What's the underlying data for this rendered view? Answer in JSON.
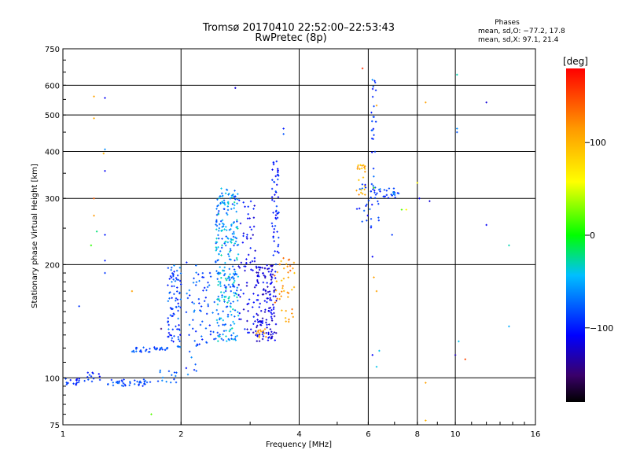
{
  "chart_data": {
    "type": "scatter",
    "title": "Tromsø 20170410 22:52:00–22:53:43",
    "subtitle": "RwPretec (8p)",
    "xlabel": "Frequency [MHz]",
    "ylabel": "Stationary phase Virtual Height [km]",
    "x_scale": "log",
    "y_scale": "log",
    "xlim": [
      1,
      16
    ],
    "ylim": [
      75,
      750
    ],
    "x_ticks": [
      "1",
      "2",
      "4",
      "6",
      "8",
      "10",
      "16"
    ],
    "x_tick_values": [
      1,
      2,
      4,
      6,
      8,
      10,
      16
    ],
    "y_ticks": [
      "75",
      "100",
      "200",
      "300",
      "400",
      "500",
      "600",
      "750"
    ],
    "y_tick_values": [
      75,
      100,
      200,
      300,
      400,
      500,
      600,
      750
    ],
    "grid": true,
    "info": {
      "heading": "Phases",
      "line1": "mean, sd,O: −77.2, 17.8",
      "line2": "mean, sd,X:  97.1, 21.4"
    },
    "colorbar": {
      "label": "[deg]",
      "range": [
        -180,
        180
      ],
      "ticks": [
        "100",
        "0",
        "−100"
      ],
      "tick_values": [
        100,
        0,
        -100
      ]
    },
    "clusters": [
      {
        "x": [
          1.0,
          1.1
        ],
        "y": [
          95,
          100
        ],
        "n": 16,
        "phase": [
          -110,
          -80
        ]
      },
      {
        "x": [
          1.1,
          1.25
        ],
        "y": [
          97,
          106
        ],
        "n": 14,
        "phase": [
          -110,
          -75
        ]
      },
      {
        "x": [
          1.3,
          1.7
        ],
        "y": [
          95,
          99
        ],
        "n": 40,
        "phase": [
          -100,
          -70
        ]
      },
      {
        "x": [
          1.7,
          1.95
        ],
        "y": [
          97,
          105
        ],
        "n": 14,
        "phase": [
          -95,
          -60
        ]
      },
      {
        "x": [
          1.5,
          1.85
        ],
        "y": [
          117,
          121
        ],
        "n": 34,
        "phase": [
          -100,
          -70
        ]
      },
      {
        "x": [
          1.85,
          2.0
        ],
        "y": [
          120,
          200
        ],
        "n": 85,
        "phase": [
          -110,
          -60
        ]
      },
      {
        "x": [
          2.05,
          2.2
        ],
        "y": [
          100,
          215
        ],
        "n": 30,
        "phase": [
          -110,
          -60
        ]
      },
      {
        "x": [
          2.2,
          2.45
        ],
        "y": [
          122,
          200
        ],
        "n": 40,
        "phase": [
          -100,
          -65
        ]
      },
      {
        "x": [
          2.45,
          2.8
        ],
        "y": [
          125,
          320
        ],
        "n": 290,
        "phase": [
          -90,
          -25
        ]
      },
      {
        "x": [
          2.8,
          3.1
        ],
        "y": [
          130,
          300
        ],
        "n": 70,
        "phase": [
          -130,
          -90
        ]
      },
      {
        "x": [
          3.1,
          3.5
        ],
        "y": [
          125,
          200
        ],
        "n": 150,
        "phase": [
          -135,
          -100
        ]
      },
      {
        "x": [
          3.1,
          3.3
        ],
        "y": [
          127,
          135
        ],
        "n": 12,
        "phase": [
          100,
          125
        ]
      },
      {
        "x": [
          3.4,
          3.55
        ],
        "y": [
          200,
          380
        ],
        "n": 55,
        "phase": [
          -115,
          -80
        ]
      },
      {
        "x": [
          3.45,
          3.9
        ],
        "y": [
          140,
          210
        ],
        "n": 45,
        "phase": [
          90,
          140
        ]
      },
      {
        "x": [
          5.6,
          5.9
        ],
        "y": [
          300,
          370
        ],
        "n": 22,
        "phase": [
          85,
          125
        ]
      },
      {
        "x": [
          5.6,
          6.4
        ],
        "y": [
          250,
          330
        ],
        "n": 30,
        "phase": [
          -110,
          -70
        ]
      },
      {
        "x": [
          6.1,
          6.3
        ],
        "y": [
          300,
          620
        ],
        "n": 28,
        "phase": [
          -110,
          -70
        ]
      },
      {
        "x": [
          6.3,
          7.2
        ],
        "y": [
          300,
          320
        ],
        "n": 24,
        "phase": [
          -110,
          -60
        ]
      }
    ],
    "points": [
      {
        "x": 1.2,
        "y": 560,
        "phase": 110
      },
      {
        "x": 1.2,
        "y": 490,
        "phase": 105
      },
      {
        "x": 1.28,
        "y": 555,
        "phase": -110
      },
      {
        "x": 1.28,
        "y": 405,
        "phase": -60
      },
      {
        "x": 1.27,
        "y": 395,
        "phase": 100
      },
      {
        "x": 1.28,
        "y": 355,
        "phase": -110
      },
      {
        "x": 1.2,
        "y": 300,
        "phase": 140
      },
      {
        "x": 1.2,
        "y": 270,
        "phase": 115
      },
      {
        "x": 1.22,
        "y": 245,
        "phase": -20
      },
      {
        "x": 1.28,
        "y": 240,
        "phase": -100
      },
      {
        "x": 1.18,
        "y": 225,
        "phase": 10
      },
      {
        "x": 1.28,
        "y": 205,
        "phase": -100
      },
      {
        "x": 1.28,
        "y": 190,
        "phase": -90
      },
      {
        "x": 1.1,
        "y": 155,
        "phase": -90
      },
      {
        "x": 1.5,
        "y": 170,
        "phase": 110
      },
      {
        "x": 1.78,
        "y": 135,
        "phase": -150
      },
      {
        "x": 1.68,
        "y": 80,
        "phase": 20
      },
      {
        "x": 2.75,
        "y": 590,
        "phase": -120
      },
      {
        "x": 3.65,
        "y": 460,
        "phase": -100
      },
      {
        "x": 3.65,
        "y": 445,
        "phase": -80
      },
      {
        "x": 5.8,
        "y": 665,
        "phase": 160
      },
      {
        "x": 6.15,
        "y": 620,
        "phase": -60
      },
      {
        "x": 6.25,
        "y": 610,
        "phase": -90
      },
      {
        "x": 6.3,
        "y": 530,
        "phase": 110
      },
      {
        "x": 6.2,
        "y": 320,
        "phase": 20
      },
      {
        "x": 6.15,
        "y": 210,
        "phase": -110
      },
      {
        "x": 6.2,
        "y": 185,
        "phase": 110
      },
      {
        "x": 6.3,
        "y": 170,
        "phase": 110
      },
      {
        "x": 6.15,
        "y": 115,
        "phase": -110
      },
      {
        "x": 6.4,
        "y": 118,
        "phase": -40
      },
      {
        "x": 6.3,
        "y": 107,
        "phase": -40
      },
      {
        "x": 6.9,
        "y": 240,
        "phase": -90
      },
      {
        "x": 7.3,
        "y": 280,
        "phase": 20
      },
      {
        "x": 7.5,
        "y": 280,
        "phase": 60
      },
      {
        "x": 8.1,
        "y": 300,
        "phase": -110
      },
      {
        "x": 8.6,
        "y": 295,
        "phase": -120
      },
      {
        "x": 8.0,
        "y": 330,
        "phase": 60
      },
      {
        "x": 8.4,
        "y": 540,
        "phase": 110
      },
      {
        "x": 8.4,
        "y": 97,
        "phase": 110
      },
      {
        "x": 8.4,
        "y": 77,
        "phase": 100
      },
      {
        "x": 10.1,
        "y": 640,
        "phase": -30
      },
      {
        "x": 10.1,
        "y": 460,
        "phase": -60
      },
      {
        "x": 10.1,
        "y": 450,
        "phase": -80
      },
      {
        "x": 10.2,
        "y": 125,
        "phase": -40
      },
      {
        "x": 10.0,
        "y": 115,
        "phase": -130
      },
      {
        "x": 10.6,
        "y": 112,
        "phase": 150
      },
      {
        "x": 12.0,
        "y": 540,
        "phase": -120
      },
      {
        "x": 12.0,
        "y": 255,
        "phase": -110
      },
      {
        "x": 13.7,
        "y": 225,
        "phase": -30
      },
      {
        "x": 13.7,
        "y": 137,
        "phase": -50
      }
    ]
  }
}
